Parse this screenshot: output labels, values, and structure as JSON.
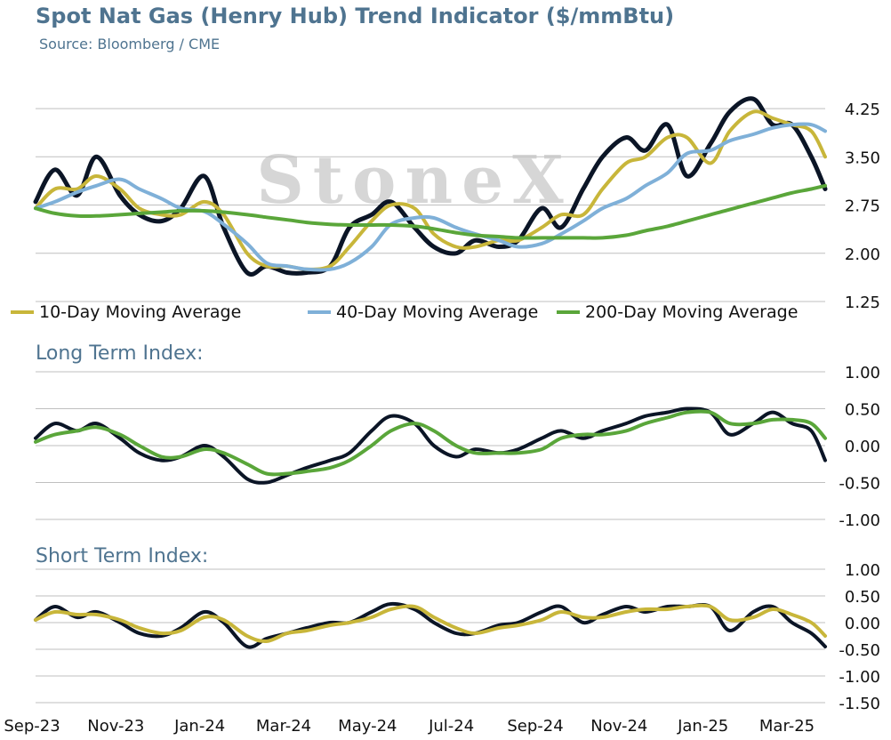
{
  "chart_data": {
    "type": "line",
    "title": "Spot Nat Gas (Henry Hub) Trend Indicator ($/mmBtu)",
    "subtitle": "Source: Bloomberg / CME",
    "watermark": "StoneX",
    "x_tick_labels": [
      "Sep-23",
      "Nov-23",
      "Jan-24",
      "Mar-24",
      "May-24",
      "Jul-24",
      "Sep-24",
      "Nov-24",
      "Jan-25",
      "Mar-25"
    ],
    "x": [
      "2023-09-01",
      "2023-09-15",
      "2023-10-01",
      "2023-10-15",
      "2023-11-01",
      "2023-11-15",
      "2023-12-01",
      "2023-12-15",
      "2024-01-01",
      "2024-01-15",
      "2024-02-01",
      "2024-02-15",
      "2024-03-01",
      "2024-03-15",
      "2024-04-01",
      "2024-04-15",
      "2024-05-01",
      "2024-05-15",
      "2024-06-01",
      "2024-06-15",
      "2024-07-01",
      "2024-07-15",
      "2024-08-01",
      "2024-08-15",
      "2024-09-01",
      "2024-09-15",
      "2024-10-01",
      "2024-10-15",
      "2024-11-01",
      "2024-11-15",
      "2024-12-01",
      "2024-12-15",
      "2025-01-01",
      "2025-01-15",
      "2025-02-01",
      "2025-02-15",
      "2025-03-01",
      "2025-03-15",
      "2025-03-25"
    ],
    "colors": {
      "price": "#0b1526",
      "ma10": "#c8b63a",
      "ma40": "#7fb0d8",
      "ma200": "#5aa63a",
      "title": "#4f7490",
      "grid": "#bfbfbf",
      "watermark": "#cfcfcf"
    },
    "panels": [
      {
        "id": "price",
        "title": "",
        "ylim": [
          1.25,
          4.5
        ],
        "yticks": [
          4.25,
          3.5,
          2.75,
          2.0,
          1.25
        ],
        "ytick_labels": [
          "4.25",
          "3.50",
          "2.75",
          "2.00",
          "1.25"
        ],
        "legend_position": "bottom",
        "series": [
          {
            "key": "price",
            "name": "",
            "color": "#0b1526",
            "width": 5,
            "values": [
              2.8,
              3.3,
              2.9,
              3.5,
              2.9,
              2.6,
              2.5,
              2.7,
              3.2,
              2.4,
              1.7,
              1.8,
              1.7,
              1.7,
              1.8,
              2.4,
              2.6,
              2.8,
              2.4,
              2.1,
              2.0,
              2.2,
              2.1,
              2.2,
              2.7,
              2.4,
              3.0,
              3.5,
              3.8,
              3.6,
              4.0,
              3.2,
              3.7,
              4.2,
              4.4,
              4.0,
              4.0,
              3.5,
              3.0
            ]
          },
          {
            "key": "ma10",
            "name": "10-Day Moving Average",
            "color": "#c8b63a",
            "width": 4,
            "values": [
              2.7,
              3.0,
              3.0,
              3.2,
              3.0,
              2.7,
              2.6,
              2.6,
              2.8,
              2.6,
              2.0,
              1.8,
              1.8,
              1.75,
              1.8,
              2.1,
              2.5,
              2.75,
              2.7,
              2.3,
              2.1,
              2.1,
              2.2,
              2.2,
              2.4,
              2.6,
              2.6,
              3.0,
              3.4,
              3.5,
              3.8,
              3.8,
              3.4,
              3.9,
              4.2,
              4.1,
              4.0,
              3.9,
              3.5
            ]
          },
          {
            "key": "ma40",
            "name": "40-Day Moving Average",
            "color": "#7fb0d8",
            "width": 4,
            "values": [
              2.7,
              2.8,
              2.95,
              3.05,
              3.15,
              3.0,
              2.85,
              2.7,
              2.65,
              2.45,
              2.15,
              1.85,
              1.8,
              1.75,
              1.75,
              1.85,
              2.1,
              2.45,
              2.55,
              2.55,
              2.4,
              2.3,
              2.2,
              2.1,
              2.15,
              2.3,
              2.5,
              2.7,
              2.85,
              3.05,
              3.25,
              3.55,
              3.6,
              3.75,
              3.85,
              3.95,
              4.0,
              4.0,
              3.9
            ]
          },
          {
            "key": "ma200",
            "name": "200-Day Moving Average",
            "color": "#5aa63a",
            "width": 4,
            "values": [
              2.7,
              2.62,
              2.58,
              2.58,
              2.6,
              2.62,
              2.64,
              2.66,
              2.66,
              2.64,
              2.6,
              2.56,
              2.52,
              2.48,
              2.45,
              2.44,
              2.44,
              2.44,
              2.42,
              2.38,
              2.32,
              2.28,
              2.26,
              2.24,
              2.24,
              2.24,
              2.24,
              2.24,
              2.28,
              2.35,
              2.42,
              2.5,
              2.6,
              2.68,
              2.78,
              2.86,
              2.94,
              3.0,
              3.05
            ]
          }
        ]
      },
      {
        "id": "long",
        "title": "Long Term Index:",
        "ylim": [
          -1.0,
          1.0
        ],
        "yticks": [
          1.0,
          0.5,
          0.0,
          -0.5,
          -1.0
        ],
        "ytick_labels": [
          "1.00",
          "0.50",
          "0.00",
          "-0.50",
          "-1.00"
        ],
        "series": [
          {
            "key": "index",
            "name": "",
            "color": "#0b1526",
            "width": 4,
            "values": [
              0.1,
              0.3,
              0.2,
              0.3,
              0.1,
              -0.1,
              -0.2,
              -0.15,
              0.0,
              -0.15,
              -0.45,
              -0.5,
              -0.4,
              -0.3,
              -0.2,
              -0.1,
              0.2,
              0.4,
              0.3,
              0.0,
              -0.15,
              -0.05,
              -0.1,
              -0.05,
              0.1,
              0.2,
              0.1,
              0.2,
              0.3,
              0.4,
              0.45,
              0.5,
              0.45,
              0.15,
              0.3,
              0.45,
              0.3,
              0.2,
              -0.2
            ]
          },
          {
            "key": "signal",
            "name": "",
            "color": "#5aa63a",
            "width": 4,
            "values": [
              0.05,
              0.15,
              0.2,
              0.25,
              0.15,
              0.0,
              -0.15,
              -0.15,
              -0.05,
              -0.1,
              -0.25,
              -0.38,
              -0.38,
              -0.35,
              -0.3,
              -0.2,
              0.0,
              0.2,
              0.3,
              0.2,
              0.0,
              -0.1,
              -0.1,
              -0.1,
              -0.05,
              0.1,
              0.15,
              0.15,
              0.2,
              0.3,
              0.38,
              0.45,
              0.45,
              0.3,
              0.3,
              0.35,
              0.35,
              0.3,
              0.1
            ]
          }
        ]
      },
      {
        "id": "short",
        "title": "Short Term Index:",
        "ylim": [
          -1.5,
          1.0
        ],
        "yticks": [
          1.0,
          0.5,
          0.0,
          -0.5,
          -1.0,
          -1.5
        ],
        "ytick_labels": [
          "1.00",
          "0.50",
          "0.00",
          "-0.50",
          "-1.00",
          "-1.50"
        ],
        "series": [
          {
            "key": "index",
            "name": "",
            "color": "#0b1526",
            "width": 4,
            "values": [
              0.05,
              0.3,
              0.1,
              0.2,
              0.0,
              -0.2,
              -0.25,
              -0.1,
              0.2,
              0.0,
              -0.45,
              -0.3,
              -0.2,
              -0.1,
              0.0,
              0.0,
              0.2,
              0.35,
              0.25,
              0.0,
              -0.2,
              -0.2,
              -0.05,
              0.0,
              0.2,
              0.3,
              0.0,
              0.15,
              0.3,
              0.2,
              0.3,
              0.3,
              0.3,
              -0.15,
              0.2,
              0.3,
              0.0,
              -0.2,
              -0.45
            ]
          },
          {
            "key": "signal",
            "name": "",
            "color": "#c8b63a",
            "width": 4,
            "values": [
              0.05,
              0.2,
              0.15,
              0.15,
              0.05,
              -0.1,
              -0.2,
              -0.15,
              0.1,
              0.05,
              -0.25,
              -0.35,
              -0.2,
              -0.15,
              -0.05,
              0.0,
              0.1,
              0.25,
              0.3,
              0.1,
              -0.1,
              -0.2,
              -0.1,
              -0.05,
              0.05,
              0.2,
              0.1,
              0.1,
              0.2,
              0.25,
              0.25,
              0.3,
              0.3,
              0.05,
              0.1,
              0.25,
              0.15,
              0.0,
              -0.25
            ]
          }
        ]
      }
    ]
  }
}
